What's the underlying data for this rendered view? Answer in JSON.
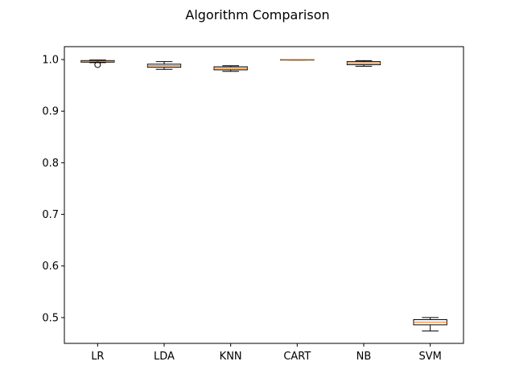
{
  "chart_data": {
    "type": "box",
    "title": "Algorithm Comparison",
    "xlabel": "",
    "ylabel": "",
    "ylim": [
      0.45,
      1.025
    ],
    "yticks": [
      0.5,
      0.6,
      0.7,
      0.8,
      0.9,
      1.0
    ],
    "ytick_labels": [
      "0.5",
      "0.6",
      "0.7",
      "0.8",
      "0.9",
      "1.0"
    ],
    "categories": [
      "LR",
      "LDA",
      "KNN",
      "CART",
      "NB",
      "SVM"
    ],
    "boxes": [
      {
        "label": "LR",
        "whisker_low": 0.994,
        "q1": 0.995,
        "median": 0.9965,
        "q3": 0.998,
        "whisker_high": 0.999,
        "outliers": [
          0.99
        ]
      },
      {
        "label": "LDA",
        "whisker_low": 0.981,
        "q1": 0.985,
        "median": 0.988,
        "q3": 0.991,
        "whisker_high": 0.996,
        "outliers": []
      },
      {
        "label": "KNN",
        "whisker_low": 0.977,
        "q1": 0.98,
        "median": 0.983,
        "q3": 0.986,
        "whisker_high": 0.988,
        "outliers": []
      },
      {
        "label": "CART",
        "whisker_low": 0.999,
        "q1": 0.999,
        "median": 1.0,
        "q3": 1.0,
        "whisker_high": 1.0,
        "outliers": []
      },
      {
        "label": "NB",
        "whisker_low": 0.987,
        "q1": 0.99,
        "median": 0.993,
        "q3": 0.996,
        "whisker_high": 0.998,
        "outliers": []
      },
      {
        "label": "SVM",
        "whisker_low": 0.474,
        "q1": 0.486,
        "median": 0.491,
        "q3": 0.496,
        "whisker_high": 0.5,
        "outliers": []
      }
    ],
    "colors": {
      "box_edge": "#000000",
      "median": "#ff7f0e",
      "box_fill": "#ffffff"
    },
    "grid": false,
    "legend": "none"
  }
}
